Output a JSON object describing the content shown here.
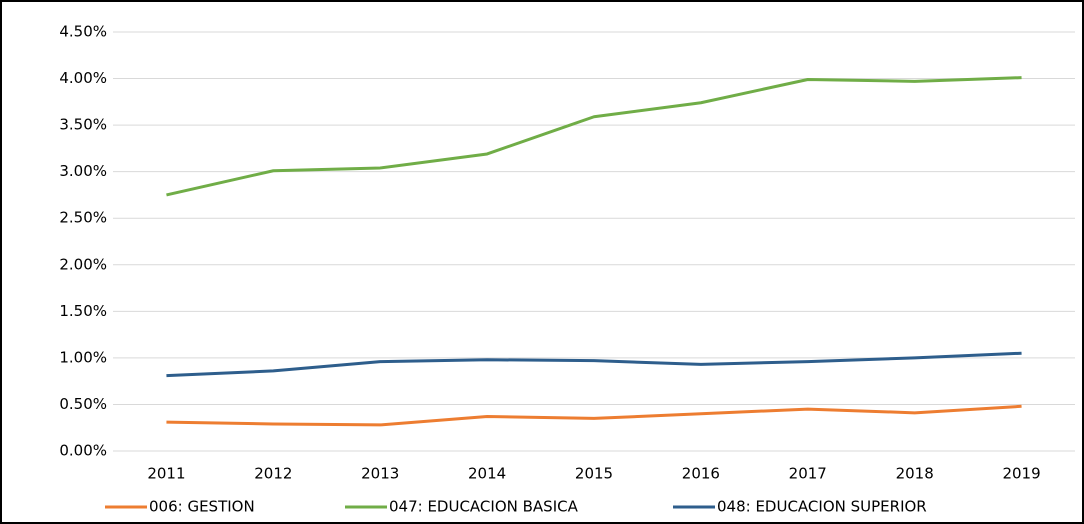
{
  "chart_data": {
    "type": "line",
    "categories": [
      "2011",
      "2012",
      "2013",
      "2014",
      "2015",
      "2016",
      "2017",
      "2018",
      "2019"
    ],
    "series": [
      {
        "name": "006: GESTION",
        "color": "#ed7d31",
        "values": [
          0.31,
          0.29,
          0.28,
          0.37,
          0.35,
          0.4,
          0.45,
          0.41,
          0.48
        ]
      },
      {
        "name": "047: EDUCACION BASICA",
        "color": "#70ad47",
        "values": [
          2.75,
          3.01,
          3.04,
          3.19,
          3.59,
          3.74,
          3.99,
          3.97,
          4.01
        ]
      },
      {
        "name": "048: EDUCACION SUPERIOR",
        "color": "#2e5e8c",
        "values": [
          0.81,
          0.86,
          0.96,
          0.98,
          0.97,
          0.93,
          0.96,
          1.0,
          1.05
        ]
      }
    ],
    "ylim": [
      0,
      4.5
    ],
    "yticks": [
      {
        "value": 0,
        "label": "0.00%"
      },
      {
        "value": 0.5,
        "label": "0.50%"
      },
      {
        "value": 1,
        "label": "1.00%"
      },
      {
        "value": 1.5,
        "label": "1.50%"
      },
      {
        "value": 2,
        "label": "2.00%"
      },
      {
        "value": 2.5,
        "label": "2.50%"
      },
      {
        "value": 3,
        "label": "3.00%"
      },
      {
        "value": 3.5,
        "label": "3.50%"
      },
      {
        "value": 4,
        "label": "4.00%"
      },
      {
        "value": 4.5,
        "label": "4.50%"
      }
    ],
    "grid": true,
    "legend": "bottom"
  }
}
